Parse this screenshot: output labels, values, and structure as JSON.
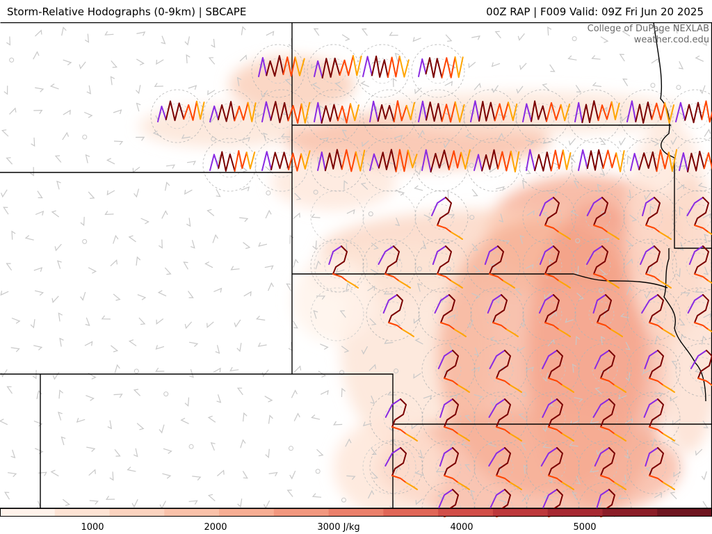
{
  "header": {
    "title": "Storm-Relative Hodographs (0-9km) | SBCAPE",
    "valid": "00Z RAP | F009 Valid: 09Z Fri Jun 20 2025"
  },
  "credit": {
    "line1": "College of DuPage NEXLAB",
    "line2": "weather.cod.edu"
  },
  "colorbar": {
    "unit": "J/kg",
    "ticks": [
      "1000",
      "2000",
      "3000 J/kg",
      "4000",
      "5000"
    ],
    "tick_values": [
      1000,
      2000,
      3000,
      4000,
      5000
    ],
    "range": [
      250,
      6000
    ],
    "colors": [
      "#fff2ea",
      "#fde3d4",
      "#fbd3bf",
      "#f9c1a9",
      "#f6ad93",
      "#f1977e",
      "#ea7f6a",
      "#e06657",
      "#d14d47",
      "#bd383b",
      "#a62831",
      "#8b1d27",
      "#6e1520"
    ]
  },
  "hodograph_colors": {
    "layer_0_1km": "#8a2be2",
    "layer_1_3km": "#7a0000",
    "layer_3_6km": "#ff4500",
    "layer_6_9km": "#ffa500"
  },
  "map": {
    "barb_color": "#c8c8c8",
    "border_color": "#000000"
  }
}
